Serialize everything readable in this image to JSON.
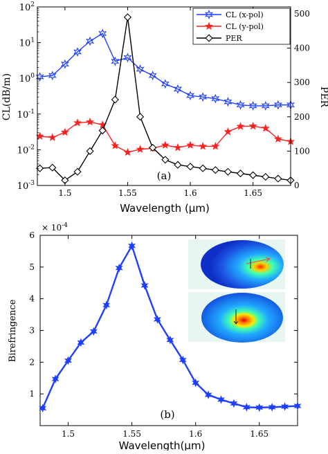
{
  "chart_data": [
    {
      "panel_label": "(a)",
      "type": "line",
      "xlabel": "Wavelength (µm)",
      "ylabel": "CL(dB/m)",
      "ylabel_right": "PER",
      "xlim": [
        1.478,
        1.68
      ],
      "ylim": [
        0.001,
        100
      ],
      "yscale": "log",
      "ylim_right": [
        0,
        520
      ],
      "x_ticks": [
        1.5,
        1.55,
        1.6,
        1.65
      ],
      "x_tick_labels": [
        "1.5",
        "1.55",
        "1.6",
        "1.65"
      ],
      "y_ticks": [
        0.001,
        0.01,
        0.1,
        1,
        10,
        100
      ],
      "y_tick_labels": [
        {
          "base": "10",
          "exp": "-3"
        },
        {
          "base": "10",
          "exp": "-2"
        },
        {
          "base": "10",
          "exp": "-1"
        },
        {
          "base": "10",
          "exp": "0"
        },
        {
          "base": "10",
          "exp": "1"
        },
        {
          "base": "10",
          "exp": "2"
        }
      ],
      "y_right_ticks": [
        0,
        100,
        200,
        300,
        400,
        500
      ],
      "y_right_tick_labels": [
        "0",
        "100",
        "200",
        "300",
        "400",
        "500"
      ],
      "legend_position": "top-right",
      "grid": false,
      "series": [
        {
          "name": "CL (x-pol)",
          "axis": "left",
          "color": "#1f3fff",
          "marker": "star6",
          "x": [
            1.48,
            1.49,
            1.5,
            1.51,
            1.52,
            1.53,
            1.54,
            1.55,
            1.56,
            1.57,
            1.58,
            1.59,
            1.6,
            1.61,
            1.62,
            1.63,
            1.64,
            1.65,
            1.66,
            1.67,
            1.68
          ],
          "y": [
            1.1,
            1.2,
            2.5,
            5.5,
            11,
            18,
            3.0,
            3.8,
            1.8,
            1.2,
            0.7,
            0.5,
            0.33,
            0.3,
            0.27,
            0.22,
            0.18,
            0.17,
            0.17,
            0.18,
            0.18
          ]
        },
        {
          "name": "CL (y-pol)",
          "axis": "left",
          "color": "#ff2020",
          "marker": "star5",
          "x": [
            1.48,
            1.49,
            1.5,
            1.51,
            1.52,
            1.53,
            1.54,
            1.55,
            1.56,
            1.57,
            1.58,
            1.59,
            1.6,
            1.61,
            1.62,
            1.63,
            1.64,
            1.65,
            1.66,
            1.67,
            1.68
          ],
          "y": [
            0.024,
            0.022,
            0.031,
            0.057,
            0.06,
            0.05,
            0.013,
            0.0085,
            0.0103,
            0.011,
            0.0135,
            0.0115,
            0.0135,
            0.0125,
            0.0125,
            0.032,
            0.045,
            0.046,
            0.04,
            0.02,
            0.017
          ]
        },
        {
          "name": "PER",
          "axis": "right",
          "color": "#000000",
          "marker": "diamond",
          "x": [
            1.48,
            1.49,
            1.5,
            1.51,
            1.52,
            1.53,
            1.54,
            1.55,
            1.56,
            1.57,
            1.58,
            1.59,
            1.6,
            1.61,
            1.62,
            1.63,
            1.64,
            1.65,
            1.66,
            1.67,
            1.68
          ],
          "y": [
            50,
            52,
            15,
            40,
            100,
            160,
            250,
            490,
            200,
            110,
            75,
            60,
            55,
            50,
            45,
            40,
            35,
            30,
            25,
            20,
            15
          ]
        }
      ]
    },
    {
      "panel_label": "(b)",
      "type": "line",
      "xlabel": "Wavelength(µm)",
      "ylabel": "Birefringence",
      "scale_factor_label": "× 10",
      "scale_factor_exp": "-4",
      "xlim": [
        1.478,
        1.68
      ],
      "ylim": [
        0,
        6
      ],
      "x_ticks": [
        1.5,
        1.55,
        1.6,
        1.65
      ],
      "x_tick_labels": [
        "1.5",
        "1.55",
        "1.6",
        "1.65"
      ],
      "y_ticks": [
        1,
        2,
        3,
        4,
        5,
        6
      ],
      "y_tick_labels": [
        "1",
        "2",
        "3",
        "4",
        "5",
        "6"
      ],
      "grid": false,
      "series": [
        {
          "color": "#1f3fff",
          "marker": "star6",
          "x": [
            1.48,
            1.49,
            1.5,
            1.51,
            1.52,
            1.53,
            1.54,
            1.55,
            1.56,
            1.57,
            1.58,
            1.59,
            1.6,
            1.61,
            1.62,
            1.63,
            1.64,
            1.65,
            1.66,
            1.67,
            1.68
          ],
          "y": [
            0.55,
            1.47,
            2.05,
            2.62,
            2.97,
            3.8,
            4.97,
            5.67,
            4.42,
            3.35,
            2.7,
            2.07,
            1.35,
            0.97,
            0.82,
            0.7,
            0.58,
            0.57,
            0.58,
            0.6,
            0.62
          ]
        }
      ]
    }
  ]
}
